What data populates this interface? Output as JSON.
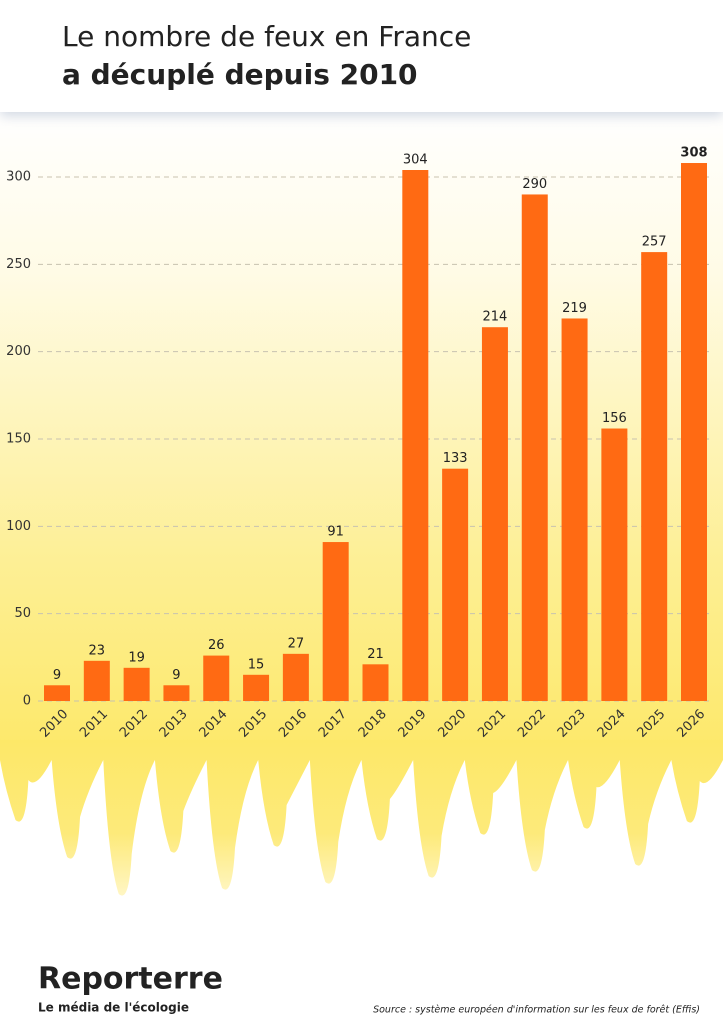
{
  "chart_data": {
    "type": "bar",
    "title": "Le nombre de feux en France",
    "subtitle": "a décuplé depuis 2010",
    "categories": [
      "2010",
      "2011",
      "2012",
      "2013",
      "2014",
      "2015",
      "2016",
      "2017",
      "2018",
      "2019",
      "2020",
      "2021",
      "2022",
      "2023",
      "2024",
      "2025",
      "2026"
    ],
    "values": [
      9,
      23,
      19,
      9,
      26,
      15,
      27,
      91,
      21,
      304,
      133,
      214,
      290,
      219,
      156,
      257,
      308
    ],
    "color": "#ff6a13",
    "ylim": [
      0,
      320
    ],
    "yticks": [
      0,
      50,
      100,
      150,
      200,
      250,
      300
    ],
    "grid": true
  },
  "brand": {
    "name": "Reporterre",
    "tagline": "Le média de l'écologie"
  },
  "source": "Source : système européen d'information sur les feux de forêt (Effis)"
}
